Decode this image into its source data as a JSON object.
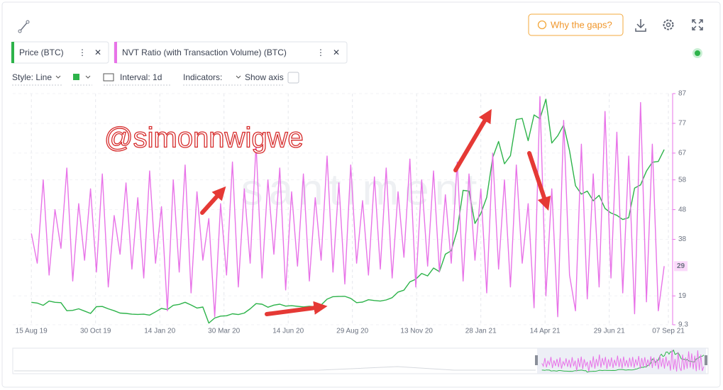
{
  "toolbar": {
    "gaps_button": "Why the gaps?"
  },
  "metrics": [
    "Price (BTC)",
    "NVT Ratio (with Transaction Volume) (BTC)"
  ],
  "options": {
    "style": "Style: Line",
    "interval": "Interval: 1d",
    "indicators": "Indicators:",
    "show_axis": "Show axis"
  },
  "chart_data": {
    "type": "line",
    "watermark": "santiment",
    "annotation": "@simonnwigwe",
    "x": [
      "2019-08-15",
      "2019-08-22",
      "2019-08-29",
      "2019-09-05",
      "2019-09-12",
      "2019-09-19",
      "2019-09-26",
      "2019-10-03",
      "2019-10-10",
      "2019-10-17",
      "2019-10-24",
      "2019-10-31",
      "2019-11-07",
      "2019-11-14",
      "2019-11-21",
      "2019-11-28",
      "2019-12-05",
      "2019-12-12",
      "2019-12-19",
      "2019-12-26",
      "2020-01-02",
      "2020-01-09",
      "2020-01-16",
      "2020-01-23",
      "2020-01-30",
      "2020-02-06",
      "2020-02-13",
      "2020-02-20",
      "2020-02-27",
      "2020-03-05",
      "2020-03-12",
      "2020-03-19",
      "2020-03-26",
      "2020-04-02",
      "2020-04-09",
      "2020-04-16",
      "2020-04-23",
      "2020-04-30",
      "2020-05-07",
      "2020-05-14",
      "2020-05-21",
      "2020-05-28",
      "2020-06-04",
      "2020-06-11",
      "2020-06-18",
      "2020-06-25",
      "2020-07-02",
      "2020-07-09",
      "2020-07-16",
      "2020-07-23",
      "2020-07-30",
      "2020-08-06",
      "2020-08-13",
      "2020-08-20",
      "2020-08-27",
      "2020-09-03",
      "2020-09-10",
      "2020-09-17",
      "2020-09-24",
      "2020-10-01",
      "2020-10-08",
      "2020-10-15",
      "2020-10-22",
      "2020-10-29",
      "2020-11-05",
      "2020-11-12",
      "2020-11-19",
      "2020-11-26",
      "2020-12-03",
      "2020-12-10",
      "2020-12-17",
      "2020-12-24",
      "2020-12-31",
      "2021-01-07",
      "2021-01-14",
      "2021-01-21",
      "2021-01-28",
      "2021-02-04",
      "2021-02-11",
      "2021-02-18",
      "2021-02-25",
      "2021-03-04",
      "2021-03-11",
      "2021-03-18",
      "2021-03-25",
      "2021-04-01",
      "2021-04-08",
      "2021-04-15",
      "2021-04-22",
      "2021-04-29",
      "2021-05-06",
      "2021-05-13",
      "2021-05-20",
      "2021-05-27",
      "2021-06-03",
      "2021-06-10",
      "2021-06-17",
      "2021-06-24",
      "2021-07-01",
      "2021-07-08",
      "2021-07-15",
      "2021-07-22",
      "2021-07-29",
      "2021-08-05",
      "2021-08-12",
      "2021-08-19",
      "2021-08-26",
      "2021-09-02"
    ],
    "xlim": [
      "2019-07-24",
      "2021-09-12"
    ],
    "xticks": [
      {
        "value": "2019-08-15",
        "label": "15 Aug 19"
      },
      {
        "value": "2019-10-30",
        "label": "30 Oct 19"
      },
      {
        "value": "2020-01-14",
        "label": "14 Jan 20"
      },
      {
        "value": "2020-03-30",
        "label": "30 Mar 20"
      },
      {
        "value": "2020-06-14",
        "label": "14 Jun 20"
      },
      {
        "value": "2020-08-29",
        "label": "29 Aug 20"
      },
      {
        "value": "2020-11-13",
        "label": "13 Nov 20"
      },
      {
        "value": "2021-01-28",
        "label": "28 Jan 21"
      },
      {
        "value": "2021-04-14",
        "label": "14 Apr 21"
      },
      {
        "value": "2021-06-29",
        "label": "29 Jun 21"
      },
      {
        "value": "2021-09-07",
        "label": "07 Sep 21"
      }
    ],
    "ylim": [
      9.3,
      87
    ],
    "yticks": [
      9.3,
      19,
      38,
      48,
      58,
      67,
      77,
      87
    ],
    "y2lim": [
      4450,
      64550
    ],
    "grid": true,
    "series": [
      {
        "name": "Price (BTC)",
        "color": "#2db34a",
        "axis": "y2",
        "values": [
          10300,
          10100,
          9500,
          10600,
          10300,
          10200,
          8100,
          8200,
          8600,
          8000,
          7400,
          9150,
          9200,
          8600,
          8100,
          7500,
          7400,
          7200,
          7150,
          7200,
          6950,
          7800,
          8700,
          8400,
          9500,
          9750,
          10300,
          9600,
          8800,
          9050,
          4900,
          6200,
          6700,
          6800,
          7300,
          7100,
          7500,
          8600,
          9950,
          9800,
          9000,
          9550,
          9800,
          9300,
          9400,
          9250,
          9100,
          9250,
          9150,
          9600,
          11100,
          11750,
          11800,
          11850,
          11300,
          10200,
          10350,
          10950,
          10750,
          10600,
          10900,
          11500,
          12950,
          13450,
          15600,
          16300,
          17800,
          17150,
          19200,
          18250,
          22800,
          23700,
          29000,
          39400,
          39200,
          30800,
          33400,
          37600,
          47900,
          52100,
          46300,
          48400,
          57800,
          58100,
          52300,
          59000,
          58000,
          63100,
          51700,
          53600,
          56400,
          49700,
          40600,
          38400,
          39200,
          36700,
          38100,
          34700,
          33500,
          32900,
          31800,
          32300,
          40000,
          40800,
          44400,
          46700,
          46900,
          50000
        ]
      },
      {
        "name": "NVT Ratio (with Transaction Volume) (BTC)",
        "color": "#e873e8",
        "axis": "y",
        "values": [
          40,
          30,
          58,
          26,
          48,
          35,
          62,
          24,
          50,
          31,
          55,
          27,
          60,
          22,
          46,
          33,
          57,
          28,
          52,
          25,
          61,
          30,
          49,
          14,
          58,
          27,
          63,
          20,
          54,
          31,
          45,
          12,
          50,
          26,
          64,
          22,
          55,
          30,
          70,
          25,
          58,
          33,
          62,
          21,
          54,
          29,
          60,
          24,
          52,
          31,
          66,
          27,
          57,
          23,
          63,
          30,
          51,
          26,
          59,
          28,
          62,
          25,
          54,
          32,
          65,
          22,
          58,
          29,
          61,
          27,
          53,
          30,
          64,
          24,
          60,
          31,
          55,
          20,
          67,
          28,
          58,
          22,
          63,
          30,
          50,
          15,
          86,
          19,
          55,
          12,
          78,
          26,
          14,
          70,
          18,
          60,
          22,
          81,
          25,
          74,
          20,
          66,
          13,
          84,
          17,
          70,
          14,
          29
        ]
      }
    ]
  }
}
